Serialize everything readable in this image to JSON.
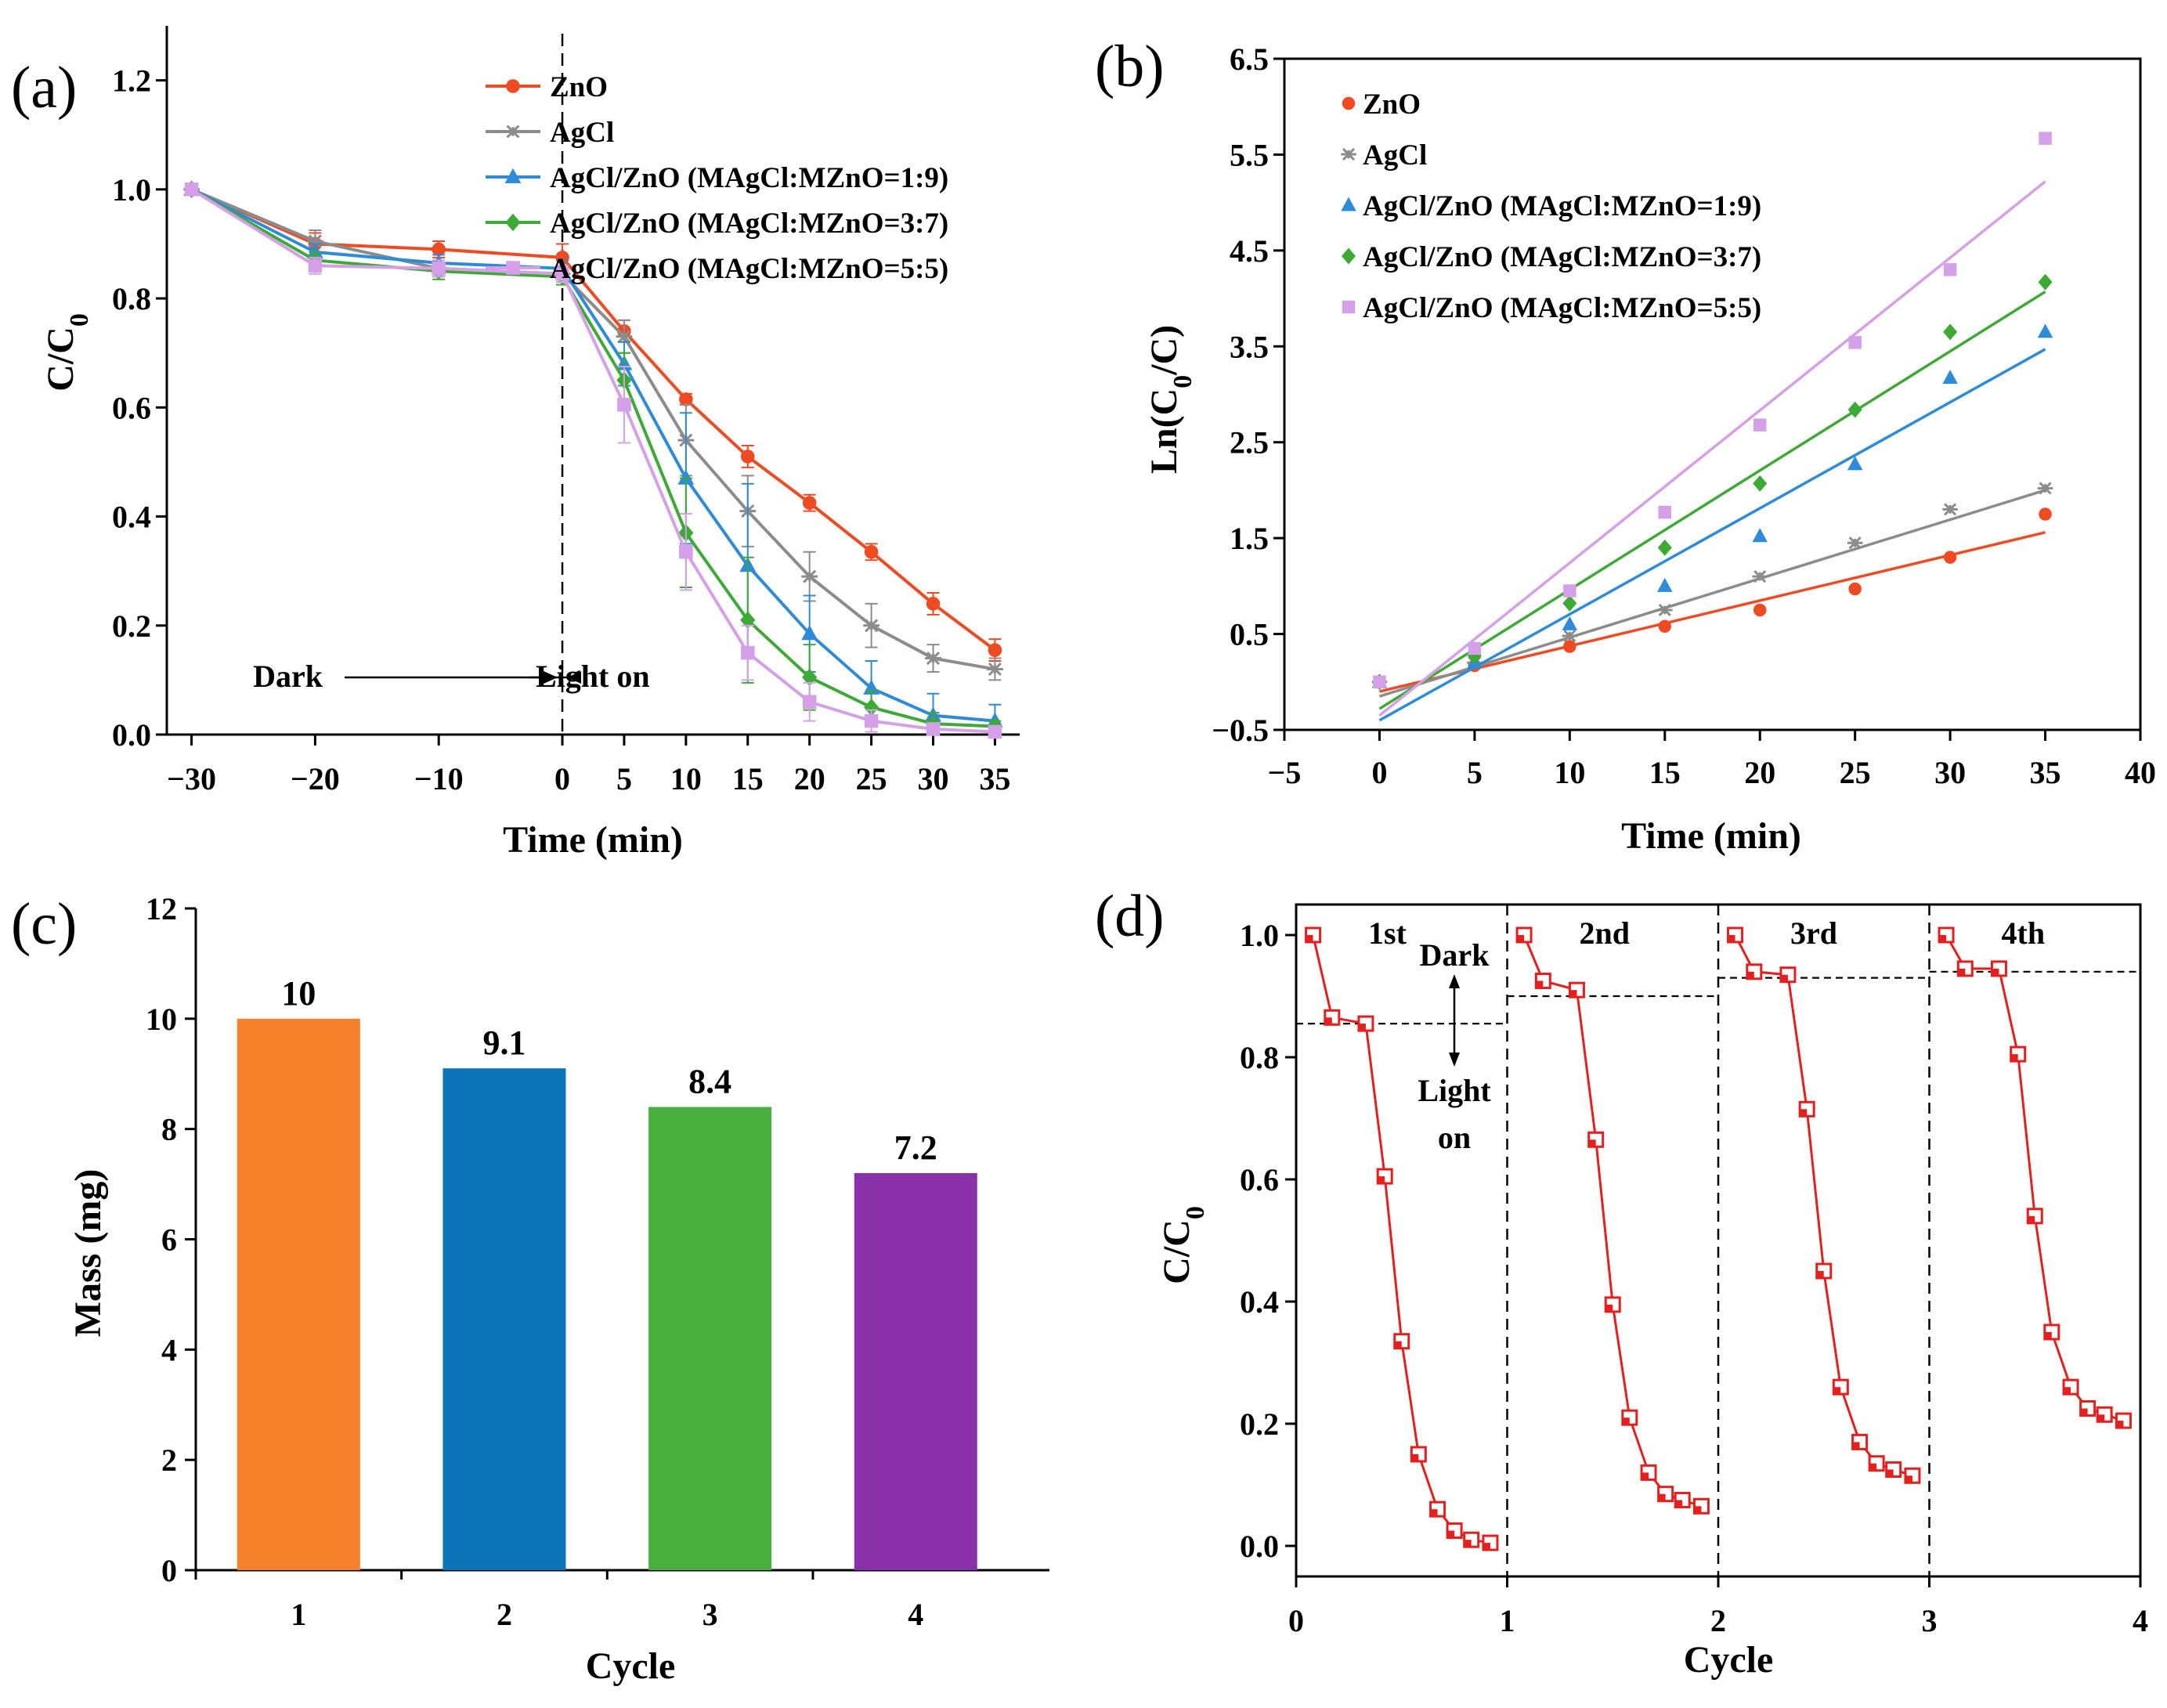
{
  "colors": {
    "zno": "#F04A23",
    "agcl": "#8C8C8C",
    "r19": "#2E8BD9",
    "r37": "#3DAA35",
    "r55": "#D5A0E8",
    "bar1": "#F6812A",
    "bar2": "#0C74B8",
    "bar3": "#48AF3E",
    "bar4": "#8A30A8",
    "cycle": "#E61E1E"
  },
  "chart_data": [
    {
      "panel": "(a)",
      "type": "line",
      "xlabel": "Time (min)",
      "ylabel_main": "C/C",
      "ylabel_sub": "0",
      "xlim": [
        -32,
        37
      ],
      "ylim": [
        0,
        1.3
      ],
      "xticks": [
        -30,
        -20,
        -10,
        0,
        5,
        10,
        15,
        20,
        25,
        30,
        35
      ],
      "xtick_labels": [
        "−30",
        "−20",
        "−10",
        "0",
        "5",
        "10",
        "15",
        "20",
        "25",
        "30",
        "35"
      ],
      "yticks": [
        0,
        0.2,
        0.4,
        0.6,
        0.8,
        1.0,
        1.2
      ],
      "ytick_labels": [
        "0.0",
        "0.2",
        "0.4",
        "0.6",
        "0.8",
        "1.0",
        "1.2"
      ],
      "x_actual": [
        -30,
        -20,
        -10,
        0,
        5,
        10,
        15,
        20,
        25,
        30,
        35
      ],
      "divider_x": 0,
      "annotation_left": "Dark",
      "annotation_right": "Light on",
      "series": [
        {
          "name": "ZnO",
          "color_key": "zno",
          "marker": "circle",
          "values": [
            1.0,
            0.9,
            0.89,
            0.875,
            0.74,
            0.615,
            0.51,
            0.425,
            0.335,
            0.24,
            0.155
          ],
          "errors": [
            0.01,
            0.02,
            0.015,
            0.025,
            0.02,
            0.01,
            0.02,
            0.015,
            0.015,
            0.02,
            0.02
          ]
        },
        {
          "name": "AgCl",
          "color_key": "agcl",
          "marker": "asterisk",
          "values": [
            1.0,
            0.905,
            0.855,
            0.845,
            0.73,
            0.54,
            0.41,
            0.29,
            0.2,
            0.14,
            0.12
          ],
          "errors": [
            0.01,
            0.02,
            0.015,
            0.015,
            0.03,
            0.065,
            0.065,
            0.045,
            0.04,
            0.025,
            0.02
          ]
        },
        {
          "name": "AgCl/ZnO (MAgCl:MZnO=1:9)",
          "color_key": "r19",
          "marker": "triangle",
          "values": [
            1.0,
            0.885,
            0.865,
            0.855,
            0.68,
            0.47,
            0.31,
            0.185,
            0.085,
            0.035,
            0.025
          ],
          "errors": [
            0.01,
            0.015,
            0.015,
            0.015,
            0.04,
            0.12,
            0.15,
            0.07,
            0.05,
            0.04,
            0.03
          ]
        },
        {
          "name": "AgCl/ZnO (MAgCl:MZnO=3:7)",
          "color_key": "r37",
          "marker": "diamond",
          "values": [
            1.0,
            0.87,
            0.85,
            0.84,
            0.65,
            0.37,
            0.21,
            0.105,
            0.05,
            0.02,
            0.015
          ],
          "errors": [
            0.01,
            0.015,
            0.015,
            0.015,
            0.05,
            0.1,
            0.115,
            0.06,
            0.03,
            0.02,
            0.01
          ]
        },
        {
          "name": "AgCl/ZnO (MAgCl:MZnO=5:5)",
          "color_key": "r55",
          "marker": "square",
          "values": [
            1.0,
            0.86,
            0.855,
            0.845,
            0.605,
            0.335,
            0.15,
            0.06,
            0.025,
            0.01,
            0.005
          ],
          "errors": [
            0.01,
            0.015,
            0.015,
            0.015,
            0.07,
            0.07,
            0.05,
            0.035,
            0.02,
            0.01,
            0.005
          ]
        }
      ]
    },
    {
      "panel": "(b)",
      "type": "scatter",
      "xlabel": "Time (min)",
      "ylabel_main": "Ln(C",
      "ylabel_sub": "0",
      "ylabel_end": "/C)",
      "xlim": [
        -5,
        40
      ],
      "ylim": [
        -0.5,
        6.5
      ],
      "xticks": [
        -5,
        0,
        5,
        10,
        15,
        20,
        25,
        30,
        35,
        40
      ],
      "xtick_labels": [
        "−5",
        "0",
        "5",
        "10",
        "15",
        "20",
        "25",
        "30",
        "35",
        "40"
      ],
      "yticks": [
        -0.5,
        0.5,
        1.5,
        2.5,
        3.5,
        4.5,
        5.5,
        6.5
      ],
      "ytick_labels": [
        "−0.5",
        "0.5",
        "1.5",
        "2.5",
        "3.5",
        "4.5",
        "5.5",
        "6.5"
      ],
      "x": [
        0,
        5,
        10,
        15,
        20,
        25,
        30,
        35
      ],
      "series": [
        {
          "name": "ZnO",
          "color_key": "zno",
          "marker": "circle",
          "values": [
            0.0,
            0.17,
            0.37,
            0.58,
            0.75,
            0.97,
            1.3,
            1.75
          ],
          "fit": [
            -0.1,
            1.56
          ]
        },
        {
          "name": "AgCl",
          "color_key": "agcl",
          "marker": "asterisk",
          "values": [
            0.0,
            0.2,
            0.48,
            0.75,
            1.1,
            1.45,
            1.8,
            2.02
          ],
          "fit": [
            -0.15,
            2.0
          ]
        },
        {
          "name": "AgCl/ZnO (MAgCl:MZnO=1:9)",
          "color_key": "r19",
          "marker": "triangle",
          "values": [
            0.0,
            0.2,
            0.6,
            1.0,
            1.52,
            2.27,
            3.17,
            3.65
          ],
          "fit": [
            -0.4,
            3.47
          ]
        },
        {
          "name": "AgCl/ZnO (MAgCl:MZnO=3:7)",
          "color_key": "r37",
          "marker": "diamond",
          "values": [
            0.0,
            0.27,
            0.82,
            1.4,
            2.07,
            2.84,
            3.65,
            4.17
          ],
          "fit": [
            -0.28,
            4.07
          ]
        },
        {
          "name": "AgCl/ZnO (MAgCl:MZnO=5:5)",
          "color_key": "r55",
          "marker": "square",
          "values": [
            0.0,
            0.35,
            0.95,
            1.77,
            2.68,
            3.54,
            4.3,
            5.67
          ],
          "fit": [
            -0.35,
            5.22
          ]
        }
      ]
    },
    {
      "panel": "(c)",
      "type": "bar",
      "xlabel": "Cycle",
      "ylabel": "Mass (mg)",
      "ylim": [
        0,
        12
      ],
      "yticks": [
        0,
        2,
        4,
        6,
        8,
        10,
        12
      ],
      "ytick_labels": [
        "0",
        "2",
        "4",
        "6",
        "8",
        "10",
        "12"
      ],
      "categories": [
        "1",
        "2",
        "3",
        "4"
      ],
      "values": [
        10.0,
        9.1,
        8.4,
        7.2
      ],
      "data_labels": [
        "10",
        "9.1",
        "8.4",
        "7.2"
      ],
      "color_keys": [
        "bar1",
        "bar2",
        "bar3",
        "bar4"
      ]
    },
    {
      "panel": "(d)",
      "type": "line",
      "xlabel": "Cycle",
      "ylabel_main": "C/C",
      "ylabel_sub": "0",
      "xlim": [
        0,
        4
      ],
      "ylim": [
        -0.05,
        1.05
      ],
      "xticks": [
        0,
        1,
        2,
        3,
        4
      ],
      "xtick_labels": [
        "0",
        "1",
        "2",
        "3",
        "4"
      ],
      "yticks": [
        0,
        0.2,
        0.4,
        0.6,
        0.8,
        1.0
      ],
      "ytick_labels": [
        "0.0",
        "0.2",
        "0.4",
        "0.6",
        "0.8",
        "1.0"
      ],
      "cycle_labels": [
        "1st",
        "2nd",
        "3rd",
        "4th"
      ],
      "dark_label": "Dark",
      "light_label_1": "Light",
      "light_label_2": "on",
      "series": [
        {
          "name": "1st",
          "x": [
            0.08,
            0.17,
            0.33,
            0.42,
            0.5,
            0.58,
            0.67,
            0.75,
            0.83,
            0.92
          ],
          "values": [
            1.0,
            0.865,
            0.855,
            0.605,
            0.335,
            0.15,
            0.06,
            0.025,
            0.01,
            0.005
          ],
          "equilibrium": 0.855
        },
        {
          "name": "2nd",
          "x": [
            1.08,
            1.17,
            1.33,
            1.42,
            1.5,
            1.58,
            1.67,
            1.75,
            1.83,
            1.92
          ],
          "values": [
            1.0,
            0.925,
            0.91,
            0.665,
            0.395,
            0.21,
            0.12,
            0.085,
            0.075,
            0.065
          ],
          "equilibrium": 0.9
        },
        {
          "name": "3rd",
          "x": [
            2.08,
            2.17,
            2.33,
            2.42,
            2.5,
            2.58,
            2.67,
            2.75,
            2.83,
            2.92
          ],
          "values": [
            1.0,
            0.94,
            0.935,
            0.715,
            0.45,
            0.26,
            0.17,
            0.135,
            0.125,
            0.115
          ],
          "equilibrium": 0.93
        },
        {
          "name": "4th",
          "x": [
            3.08,
            3.17,
            3.33,
            3.42,
            3.5,
            3.58,
            3.67,
            3.75,
            3.83,
            3.92
          ],
          "values": [
            1.0,
            0.945,
            0.945,
            0.805,
            0.54,
            0.35,
            0.26,
            0.225,
            0.215,
            0.205
          ],
          "equilibrium": 0.94
        }
      ]
    }
  ]
}
